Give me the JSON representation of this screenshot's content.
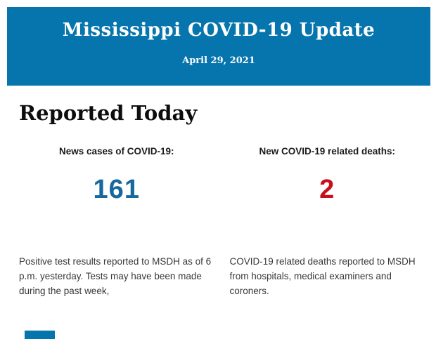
{
  "banner": {
    "title": "Mississippi COVID-19 Update",
    "date": "April 29, 2021",
    "bg_color": "#0775ad",
    "text_color": "#ffffff"
  },
  "section": {
    "heading": "Reported Today"
  },
  "stats": [
    {
      "label": "News cases of COVID-19:",
      "value": "161",
      "value_color": "#17689c",
      "description": "Positive test results reported to MSDH as of 6 p.m. yesterday. Tests may have been made during the past week,"
    },
    {
      "label": "New COVID-19 related deaths:",
      "value": "2",
      "value_color": "#c8101c",
      "description": "COVID-19 related deaths reported to MSDH from hospitals, medical examiners and coroners."
    }
  ],
  "footer": {
    "next_section_color": "#0775ad"
  }
}
